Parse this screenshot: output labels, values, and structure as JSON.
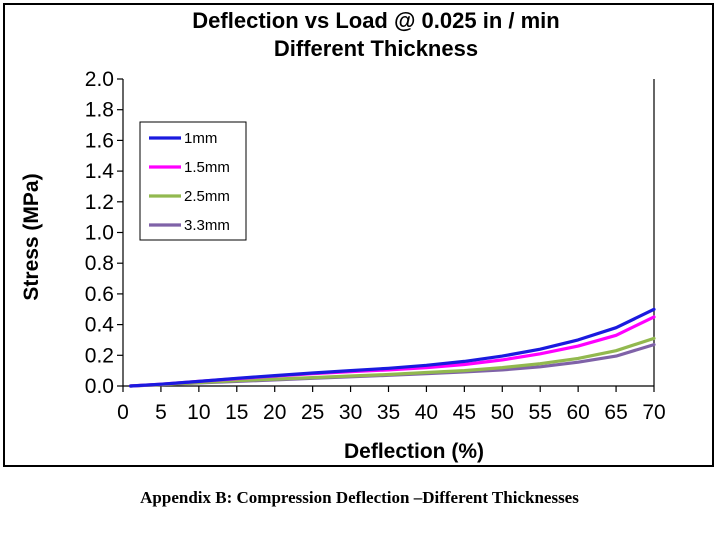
{
  "chart_data": {
    "type": "line",
    "title": "Deflection vs Load @  0.025 in / min",
    "subtitle": "Different Thickness",
    "xlabel": "Deflection  (%)",
    "ylabel": "Stress (MPa)",
    "xlim": [
      0,
      70
    ],
    "ylim": [
      0,
      2.0
    ],
    "xticks": [
      "0",
      "5",
      "10",
      "15",
      "20",
      "25",
      "30",
      "35",
      "40",
      "45",
      "50",
      "55",
      "60",
      "65",
      "70"
    ],
    "yticks": [
      "0.0",
      "0.2",
      "0.4",
      "0.6",
      "0.8",
      "1.0",
      "1.2",
      "1.4",
      "1.6",
      "1.8",
      "2.0"
    ],
    "grid": false,
    "legend_position": "top-left",
    "series": [
      {
        "name": "1mm",
        "color": "#1a1adf",
        "x": [
          1,
          5,
          10,
          15,
          20,
          25,
          30,
          35,
          40,
          45,
          50,
          55,
          60,
          65,
          70
        ],
        "y": [
          0.0,
          0.012,
          0.03,
          0.05,
          0.068,
          0.085,
          0.1,
          0.115,
          0.135,
          0.16,
          0.195,
          0.24,
          0.3,
          0.38,
          0.5
        ]
      },
      {
        "name": "1.5mm",
        "color": "#ff00ff",
        "x": [
          1,
          5,
          10,
          15,
          20,
          25,
          30,
          35,
          40,
          45,
          50,
          55,
          60,
          65,
          70
        ],
        "y": [
          0.0,
          0.012,
          0.03,
          0.048,
          0.065,
          0.08,
          0.093,
          0.105,
          0.12,
          0.14,
          0.17,
          0.21,
          0.26,
          0.33,
          0.45
        ]
      },
      {
        "name": "2.5mm",
        "color": "#92b94f",
        "x": [
          1,
          5,
          10,
          15,
          20,
          25,
          30,
          35,
          40,
          45,
          50,
          55,
          60,
          65,
          70
        ],
        "y": [
          0.0,
          0.01,
          0.022,
          0.035,
          0.045,
          0.055,
          0.065,
          0.075,
          0.088,
          0.1,
          0.12,
          0.145,
          0.18,
          0.23,
          0.31
        ]
      },
      {
        "name": "3.3mm",
        "color": "#7f62a8",
        "x": [
          1,
          5,
          10,
          15,
          20,
          25,
          30,
          35,
          40,
          45,
          50,
          55,
          60,
          65,
          70
        ],
        "y": [
          0.0,
          0.009,
          0.02,
          0.03,
          0.04,
          0.05,
          0.06,
          0.07,
          0.08,
          0.092,
          0.105,
          0.125,
          0.155,
          0.195,
          0.27
        ]
      }
    ]
  },
  "caption": "Appendix B: Compression Deflection –Different Thicknesses"
}
